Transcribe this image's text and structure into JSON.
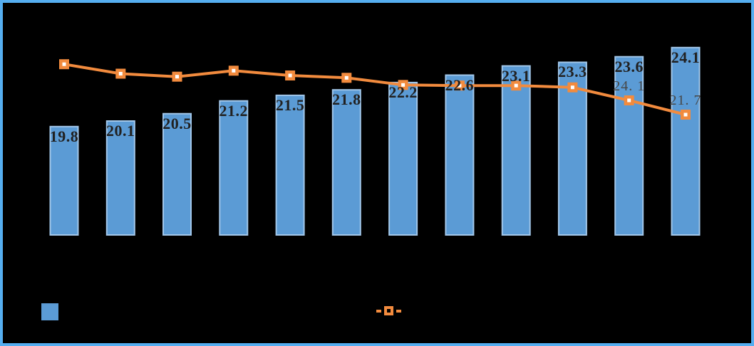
{
  "window": {
    "background_color": "#000000",
    "frame_border_color": "#55AEF0"
  },
  "chart_data": {
    "type": "combo",
    "title": "",
    "num_categories": 12,
    "category_tick_labels_visible": false,
    "grid": false,
    "axes": {
      "x": {
        "visible": false
      },
      "primary_y": {
        "visible": false,
        "approx_range": [
          14,
          26
        ]
      },
      "secondary_y": {
        "visible": false,
        "approx_range": [
          20,
          32
        ]
      }
    },
    "series": [
      {
        "name": "bar-series",
        "type": "bar",
        "color": "#5B9BD5",
        "edge_color": "#A2C7EA",
        "values": [
          19.8,
          20.1,
          20.5,
          21.2,
          21.5,
          21.8,
          22.2,
          22.6,
          23.1,
          23.3,
          23.6,
          24.1
        ],
        "labels": [
          "19.8",
          "20.1",
          "20.5",
          "21.2",
          "21.5",
          "21.8",
          "22.2",
          "22.6",
          "23.1",
          "23.3",
          "23.6",
          "24.1"
        ],
        "label_color": "#212121",
        "label_position": "inside-end"
      },
      {
        "name": "line-series",
        "type": "line",
        "color": "#F28B3E",
        "marker": "square",
        "marker_fill": "#FFFFFF",
        "values": [
          30.2,
          28.6,
          28.1,
          29.1,
          28.3,
          27.9,
          26.7,
          26.6,
          26.6,
          26.3,
          24.1,
          21.7
        ],
        "values_estimated": [
          true,
          true,
          true,
          true,
          true,
          true,
          true,
          true,
          true,
          true,
          false,
          false
        ],
        "labels": [
          "",
          "",
          "",
          "",
          "",
          "",
          "",
          "",
          "",
          "",
          "24. 1",
          "21. 7"
        ],
        "label_color": "#474747",
        "label_position": "above"
      }
    ],
    "legend": {
      "position": "bottom",
      "items": [
        {
          "swatch": "bar-square",
          "color": "#5B9BD5",
          "label": ""
        },
        {
          "swatch": "line-with-marker",
          "color": "#F28B3E",
          "label": ""
        }
      ]
    }
  }
}
